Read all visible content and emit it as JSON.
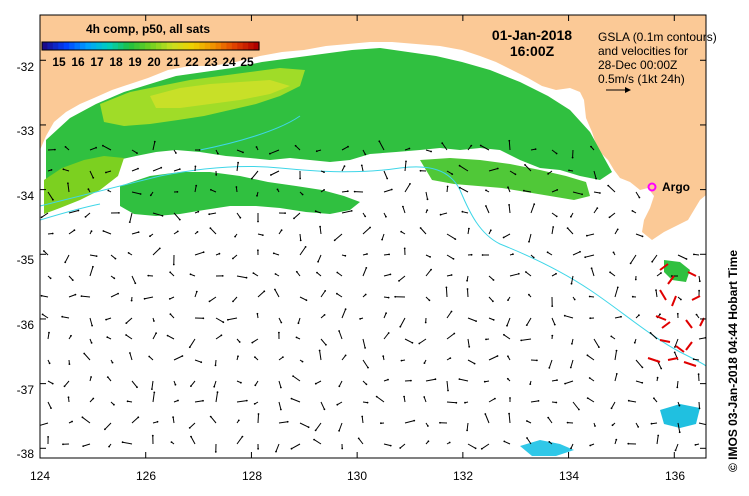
{
  "map": {
    "lon_range": [
      124,
      136.6
    ],
    "lat_range": [
      -38.15,
      -31.3
    ],
    "lon_ticks": [
      "124",
      "126",
      "128",
      "130",
      "132",
      "134",
      "136"
    ],
    "lat_ticks": [
      "-32",
      "-33",
      "-34",
      "-35",
      "-36",
      "-37",
      "-38"
    ],
    "land_color": "#fbc996",
    "sea_color": "#ffffff",
    "contour_color": "#3fd6e8"
  },
  "colorbar": {
    "title": "4h comp, p50, all sats",
    "labels": [
      "15",
      "16",
      "17",
      "18",
      "19",
      "20",
      "21",
      "22",
      "23",
      "24",
      "25"
    ],
    "colors": [
      "#1a0a8c",
      "#0040ff",
      "#00a0ff",
      "#00d0c0",
      "#20c040",
      "#70d020",
      "#c8e020",
      "#f0d000",
      "#f09000",
      "#e04000",
      "#b00000"
    ]
  },
  "date": {
    "line1": "01-Jan-2018",
    "line2": "16:00Z"
  },
  "legend": {
    "line1": "GSLA (0.1m contours)",
    "line2": "and velocities for",
    "line3": "28-Dec 00:00Z",
    "line4": "0.5m/s (1kt 24h)"
  },
  "argo": {
    "label": "Argo",
    "color": "#ff00ff"
  },
  "credit": "© IMOS 03-Jan-2018 04:44 Hobart Time"
}
